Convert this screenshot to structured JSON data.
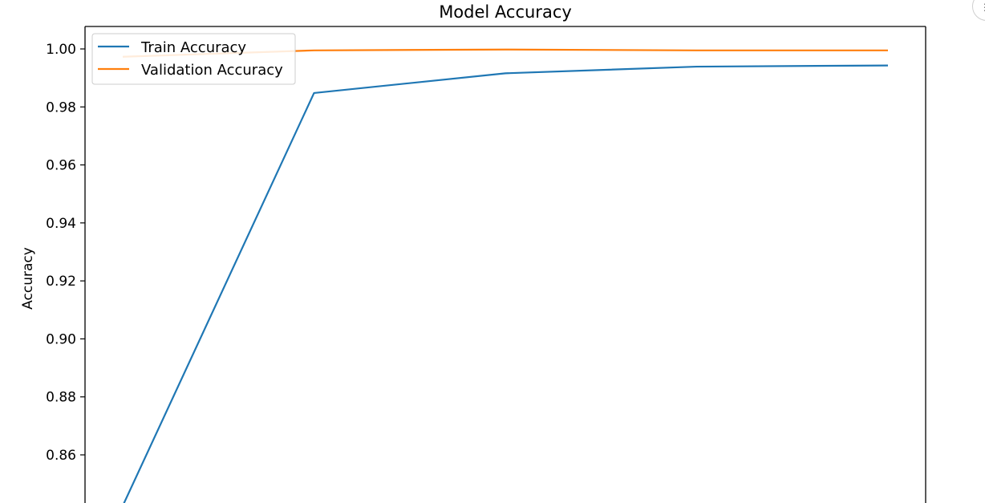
{
  "chart_data": {
    "type": "line",
    "title": "Model Accuracy",
    "xlabel": "",
    "ylabel": "Accuracy",
    "x": [
      0,
      1,
      2,
      3,
      4
    ],
    "ylim": [
      0.8427,
      1.0075
    ],
    "yticks": [
      0.86,
      0.88,
      0.9,
      0.92,
      0.94,
      0.96,
      0.98,
      1.0
    ],
    "ytick_labels": [
      "0.86",
      "0.88",
      "0.90",
      "0.92",
      "0.94",
      "0.96",
      "0.98",
      "1.00"
    ],
    "series": [
      {
        "name": "Train Accuracy",
        "color": "#1f77b4",
        "values": [
          0.8424,
          0.9848,
          0.9916,
          0.9939,
          0.9943
        ]
      },
      {
        "name": "Validation Accuracy",
        "color": "#ff7f0e",
        "values": [
          0.9973,
          0.9995,
          0.9998,
          0.9995,
          0.9995
        ]
      }
    ],
    "legend": "top-left",
    "grid": false
  }
}
